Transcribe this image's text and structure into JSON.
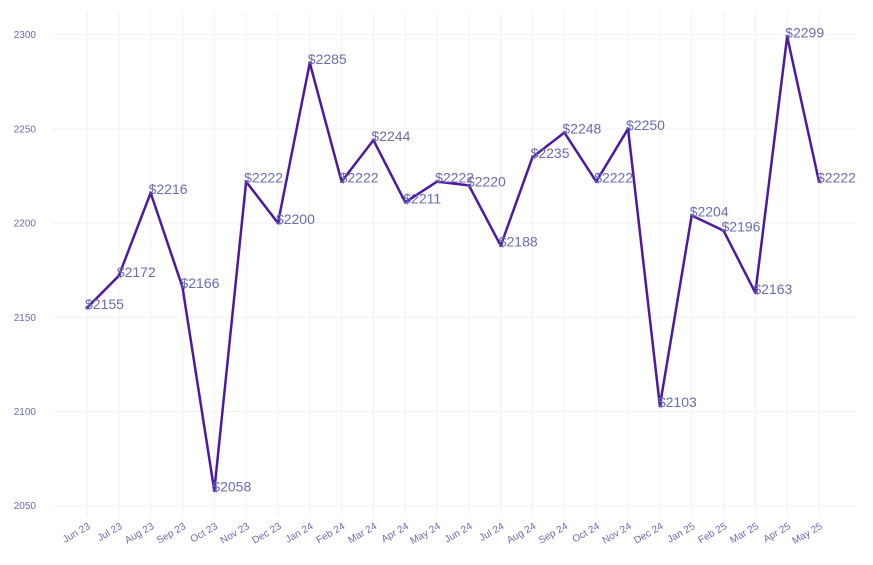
{
  "chart_data": {
    "type": "line",
    "title": "",
    "xlabel": "",
    "ylabel": "",
    "categories": [
      "Jun 23",
      "Jul 23",
      "Aug 23",
      "Sep 23",
      "Oct 23",
      "Nov 23",
      "Dec 23",
      "Jan 24",
      "Feb 24",
      "Mar 24",
      "Apr 24",
      "May 24",
      "Jun 24",
      "Jul 24",
      "Aug 24",
      "Sep 24",
      "Oct 24",
      "Nov 24",
      "Dec 24",
      "Jan 25",
      "Feb 25",
      "Mar 25",
      "Apr 25",
      "May 25"
    ],
    "series": [
      {
        "values": [
          2155,
          2172,
          2216,
          2166,
          2058,
          2222,
          2200,
          2285,
          2222,
          2244,
          2211,
          2222,
          2220,
          2188,
          2235,
          2248,
          2222,
          2250,
          2103,
          2204,
          2196,
          2163,
          2299,
          2222
        ],
        "labels": [
          "$2155",
          "$2172",
          "$2216",
          "$2166",
          "$2058",
          "$2222",
          "$2200",
          "$2285",
          "$2222",
          "$2244",
          "$2211",
          "$2222",
          "$2220",
          "$2188",
          "$2235",
          "$2248",
          "$2222",
          "$2250",
          "$2103",
          "$2204",
          "$2196",
          "$2163",
          "$2299",
          "$2222"
        ],
        "color": "#4b1aa0"
      }
    ],
    "yticks": [
      2050,
      2100,
      2150,
      2200,
      2250,
      2300
    ],
    "ylim": [
      2044,
      2312
    ],
    "grid": true,
    "legend": "none",
    "label_color": "#6b6bb0",
    "tick_color": "#6b6bb0",
    "grid_color": "#f2f2f2"
  }
}
